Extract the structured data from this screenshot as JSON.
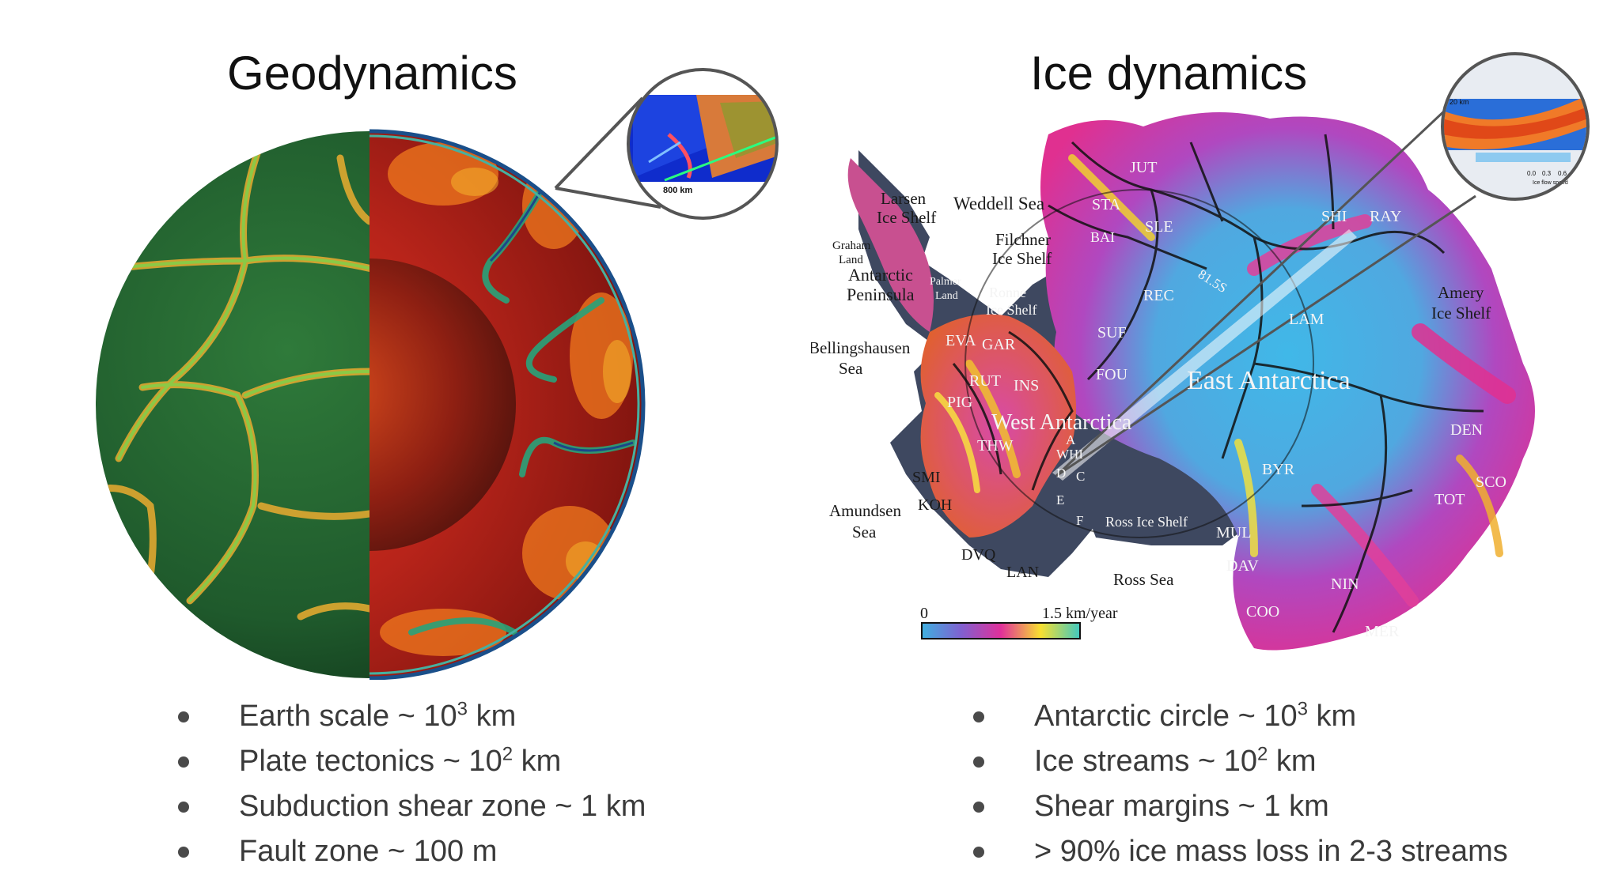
{
  "geodynamics": {
    "title": "Geodynamics",
    "inset_scale_label": "800 km",
    "bullets": [
      {
        "text": "Earth scale ~ 10",
        "sup": "3",
        "suffix": " km"
      },
      {
        "text": "Plate tectonics ~ 10",
        "sup": "2",
        "suffix": " km"
      },
      {
        "text": "Subduction shear zone ~ 1 km",
        "sup": "",
        "suffix": ""
      },
      {
        "text": "Fault zone ~ 100 m",
        "sup": "",
        "suffix": ""
      }
    ]
  },
  "ice_dynamics": {
    "title": "Ice dynamics",
    "inset": {
      "corner_label": "20 km",
      "ticks": [
        "0.0",
        "0.3",
        "0.6"
      ],
      "caption": "Ice flow speed"
    },
    "map_labels": {
      "larsen": [
        "Larsen",
        "Ice Shelf"
      ],
      "weddell": "Weddell Sea",
      "filchner": [
        "Filchner",
        "Ice Shelf"
      ],
      "graham": [
        "Graham",
        "Land"
      ],
      "peninsula": [
        "Antarctic",
        "Peninsula"
      ],
      "palmer": [
        "Palmer",
        "Land"
      ],
      "ronne": [
        "Ronne",
        "Ice Shelf"
      ],
      "bellingshausen": [
        "Bellingshausen",
        "Sea"
      ],
      "amundsen": [
        "Amundsen",
        "Sea"
      ],
      "amery": [
        "Amery",
        "Ice Shelf"
      ],
      "east": "East Antarctica",
      "west": "West Antarctica",
      "ross_shelf": "Ross Ice Shelf",
      "ross_sea": "Ross Sea",
      "lat": "81.5S",
      "basins": [
        "JUT",
        "STA",
        "SLE",
        "BAI",
        "SHI",
        "RAY",
        "REC",
        "LAM",
        "SUF",
        "EVA",
        "GAR",
        "FOU",
        "INS",
        "RUT",
        "PIG",
        "THW",
        "WHI",
        "A",
        "D",
        "C",
        "E",
        "F",
        "SMI",
        "KOH",
        "DVQ",
        "LAN",
        "BYR",
        "DEN",
        "SCO",
        "TOT",
        "MUL",
        "DAV",
        "NIN",
        "COO",
        "MER"
      ]
    },
    "scale": {
      "min": "0",
      "max": "1.5 km/year"
    },
    "bullets": [
      {
        "text": "Antarctic circle ~ 10",
        "sup": "3",
        "suffix": " km"
      },
      {
        "text": "Ice streams ~ 10",
        "sup": "2",
        "suffix": " km"
      },
      {
        "text": "Shear margins ~ 1 km",
        "sup": "",
        "suffix": ""
      },
      {
        "text": "> 90% ice mass loss in 2-3 streams",
        "sup": "",
        "suffix": ""
      }
    ]
  },
  "colors": {
    "mantle_green": "#1f5a2c",
    "mantle_red": "#8e1a10",
    "ice_magenta": "#d0389c",
    "ice_cyan": "#3fb0e0"
  }
}
